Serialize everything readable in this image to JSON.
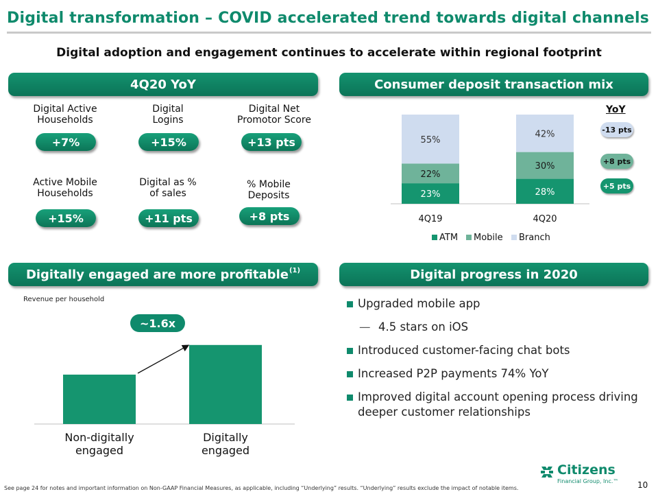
{
  "title": "Digital transformation – COVID accelerated trend towards digital channels",
  "subtitle": "Digital adoption and engagement continues to accelerate within regional footprint",
  "sections": {
    "yoy": "4Q20 YoY",
    "deposit_mix": "Consumer deposit transaction mix",
    "profitable": "Digitally engaged are more profitable",
    "profitable_note": "(1)",
    "progress": "Digital progress in 2020"
  },
  "metrics": [
    {
      "label": "Digital Active Households",
      "line1": "Digital Active",
      "line2": "Households",
      "value": "+7%"
    },
    {
      "label": "Digital Logins",
      "line1": "Digital",
      "line2": "Logins",
      "value": "+15%"
    },
    {
      "label": "Digital Net Promotor Score",
      "line1": "Digital Net",
      "line2": "Promotor Score",
      "value": "+13 pts"
    },
    {
      "label": "Active Mobile Households",
      "line1": "Active Mobile",
      "line2": "Households",
      "value": "+15%"
    },
    {
      "label": "Digital as % of sales",
      "line1": "Digital as %",
      "line2": "of sales",
      "value": "+11 pts"
    },
    {
      "label": "% Mobile Deposits",
      "line1": "% Mobile",
      "line2": "Deposits",
      "value": "+8 pts"
    }
  ],
  "yoy_header": "YoY",
  "yoy_changes": [
    {
      "series": "Branch",
      "value": "-13 pts",
      "color": "#cfdcef"
    },
    {
      "series": "Mobile",
      "value": "+8 pts",
      "color": "#6fb39a"
    },
    {
      "series": "ATM",
      "value": "+5 pts",
      "color": "#15956f"
    }
  ],
  "progress_items": [
    {
      "text": "Upgraded mobile app",
      "level": 1
    },
    {
      "text": "4.5 stars on iOS",
      "level": 2
    },
    {
      "text": "Introduced customer-facing chat bots",
      "level": 1
    },
    {
      "text": "Increased P2P payments 74% YoY",
      "level": 1
    },
    {
      "text": "Improved digital account opening process driving deeper customer relationships",
      "level": 1
    }
  ],
  "revenue_label": "Revenue per household",
  "multiplier": "~1.6x",
  "footnote": "See page 24 for notes and important information on  Non-GAAP Financial Measures, as applicable, including “Underlying” results. “Underlying” results exclude the impact of notable items.",
  "page_number": "10",
  "logo": {
    "name": "Citizens",
    "sub": "Financial Group, Inc.™"
  },
  "chart_data": [
    {
      "type": "bar",
      "stacked": true,
      "categories": [
        "4Q19",
        "4Q20"
      ],
      "series": [
        {
          "name": "ATM",
          "values": [
            23,
            28
          ],
          "labels": [
            "23%",
            "28%"
          ],
          "color": "#15956f"
        },
        {
          "name": "Mobile",
          "values": [
            22,
            30
          ],
          "labels": [
            "22%",
            "30%"
          ],
          "color": "#6fb39a"
        },
        {
          "name": "Branch",
          "values": [
            55,
            42
          ],
          "labels": [
            "55%",
            "42%"
          ],
          "color": "#cfdcef"
        }
      ],
      "ylim": [
        0,
        100
      ],
      "legend": "bottom",
      "grid": false
    },
    {
      "type": "bar",
      "categories": [
        "Non-digitally engaged",
        "Digitally engaged"
      ],
      "category_lines": [
        [
          "Non-digitally",
          "engaged"
        ],
        [
          "Digitally",
          "engaged"
        ]
      ],
      "values": [
        1.0,
        1.6
      ],
      "color": "#15956f",
      "ylabel": "Revenue per household",
      "grid": false
    }
  ]
}
